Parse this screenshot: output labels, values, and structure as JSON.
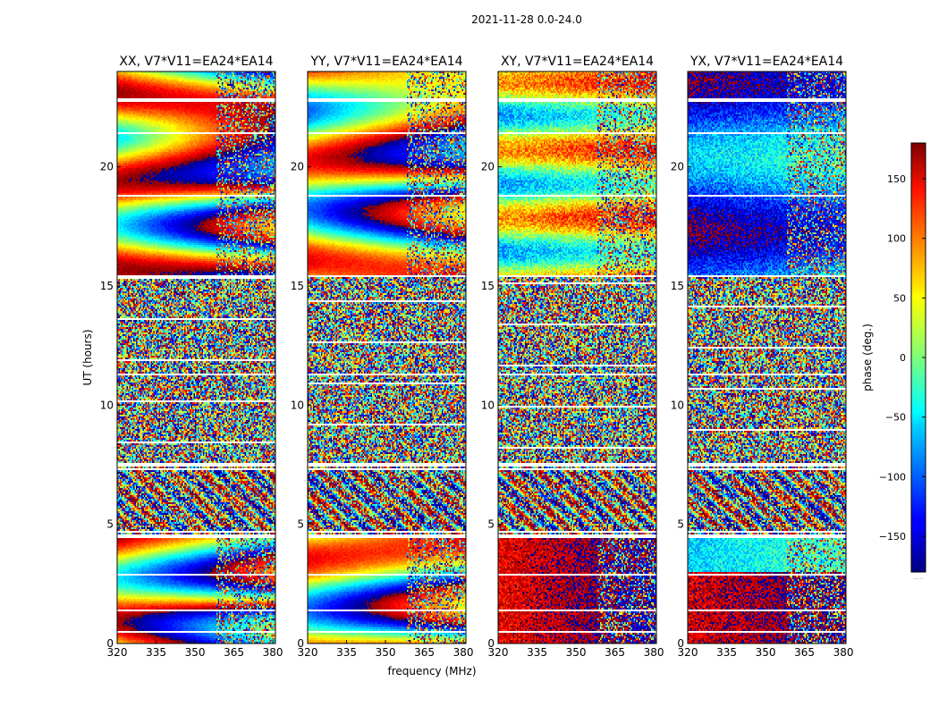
{
  "figure": {
    "suptitle": "2021-11-28 0.0-24.0",
    "xlabel": "frequency (MHz)",
    "ylabel": "UT (hours)"
  },
  "chart_data": [
    {
      "type": "heatmap",
      "title": "XX, V7*V11=EA24*EA14",
      "xlim": [
        320,
        381
      ],
      "xticks": [
        320,
        335,
        350,
        365,
        380
      ],
      "ylim": [
        0,
        24
      ],
      "yticks": [
        0,
        5,
        10,
        15,
        20
      ],
      "xlabel": "frequency (MHz)",
      "ylabel": "UT (hours)",
      "value": "phase (deg.)"
    },
    {
      "type": "heatmap",
      "title": "YY, V7*V11=EA24*EA14",
      "xlim": [
        320,
        381
      ],
      "xticks": [
        320,
        335,
        350,
        365,
        380
      ],
      "ylim": [
        0,
        24
      ],
      "yticks": [
        0,
        5,
        10,
        15,
        20
      ],
      "xlabel": "frequency (MHz)",
      "ylabel": "UT (hours)",
      "value": "phase (deg.)"
    },
    {
      "type": "heatmap",
      "title": "XY, V7*V11=EA24*EA14",
      "xlim": [
        320,
        381
      ],
      "xticks": [
        320,
        335,
        350,
        365,
        380
      ],
      "ylim": [
        0,
        24
      ],
      "yticks": [
        0,
        5,
        10,
        15,
        20
      ],
      "xlabel": "frequency (MHz)",
      "ylabel": "UT (hours)",
      "value": "phase (deg.)"
    },
    {
      "type": "heatmap",
      "title": "YX, V7*V11=EA24*EA14",
      "xlim": [
        320,
        381
      ],
      "xticks": [
        320,
        335,
        350,
        365,
        380
      ],
      "ylim": [
        0,
        24
      ],
      "yticks": [
        0,
        5,
        10,
        15,
        20
      ],
      "xlabel": "frequency (MHz)",
      "ylabel": "UT (hours)",
      "value": "phase (deg.)"
    }
  ],
  "colorbar": {
    "label": "phase (deg.)",
    "range": [
      -180,
      180
    ],
    "ticks": [
      150,
      100,
      50,
      0,
      -50,
      -100,
      -150
    ],
    "tick_labels": [
      "150",
      "100",
      "50",
      "0",
      "−50",
      "−100",
      "−150"
    ]
  }
}
